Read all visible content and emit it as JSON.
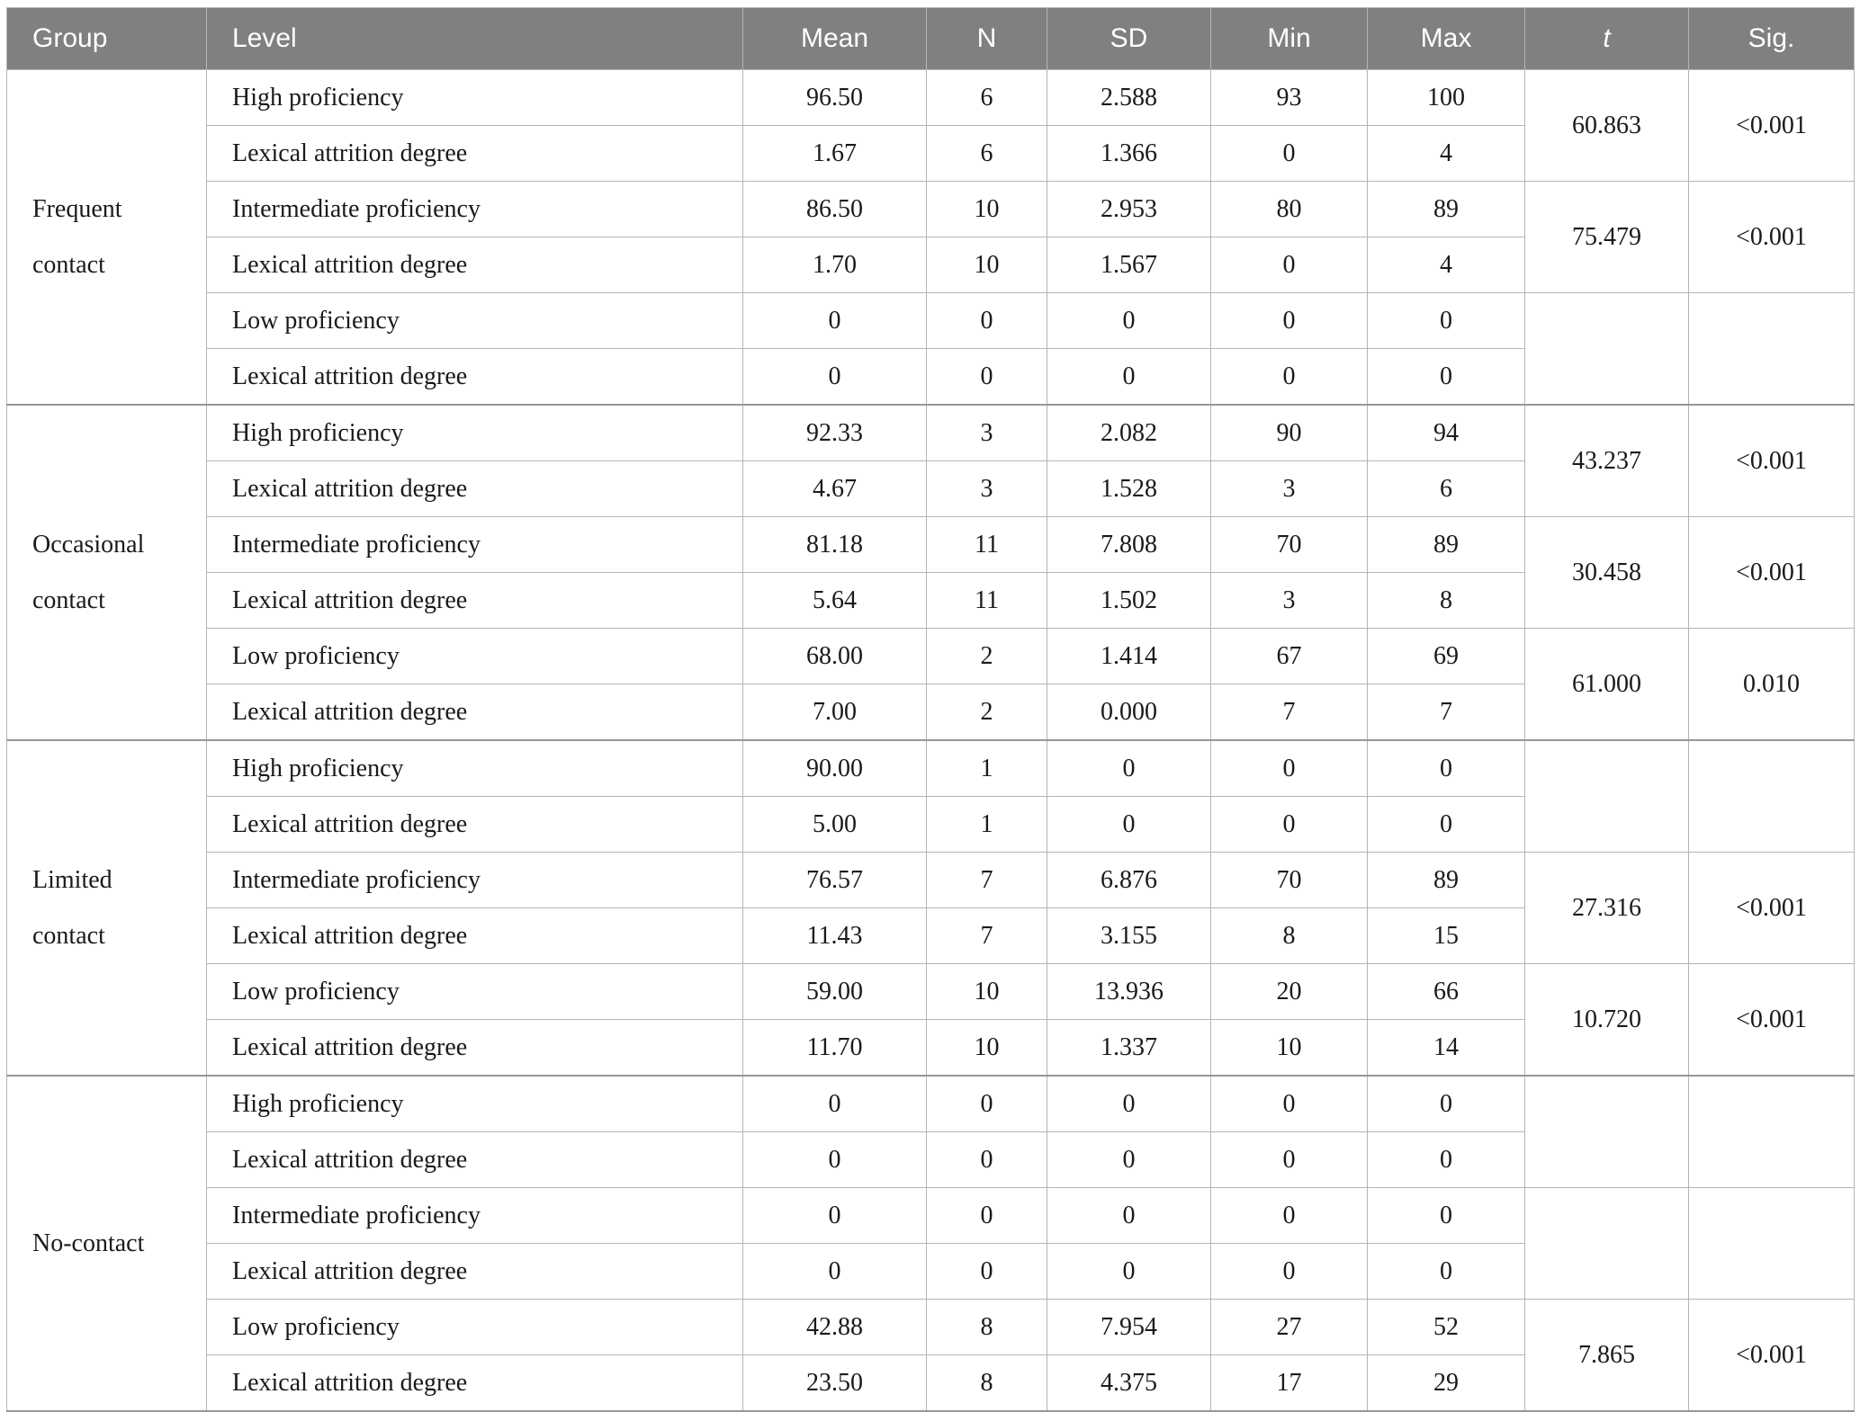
{
  "table": {
    "columns": {
      "group": "Group",
      "level": "Level",
      "mean": "Mean",
      "n": "N",
      "sd": "SD",
      "min": "Min",
      "max": "Max",
      "t": "t",
      "sig": "Sig."
    },
    "groups": [
      {
        "label": "Frequent\ncontact",
        "rows": [
          {
            "level": "High proficiency",
            "mean": "96.50",
            "n": "6",
            "sd": "2.588",
            "min": "93",
            "max": "100"
          },
          {
            "level": "Lexical attrition degree",
            "mean": "1.67",
            "n": "6",
            "sd": "1.366",
            "min": "0",
            "max": "4"
          },
          {
            "level": "Intermediate proficiency",
            "mean": "86.50",
            "n": "10",
            "sd": "2.953",
            "min": "80",
            "max": "89"
          },
          {
            "level": "Lexical attrition degree",
            "mean": "1.70",
            "n": "10",
            "sd": "1.567",
            "min": "0",
            "max": "4"
          },
          {
            "level": "Low proficiency",
            "mean": "0",
            "n": "0",
            "sd": "0",
            "min": "0",
            "max": "0"
          },
          {
            "level": "Lexical attrition degree",
            "mean": "0",
            "n": "0",
            "sd": "0",
            "min": "0",
            "max": "0"
          }
        ],
        "stats": [
          {
            "t": "60.863",
            "sig": "<0.001"
          },
          {
            "t": "75.479",
            "sig": "<0.001"
          },
          {
            "t": "",
            "sig": ""
          }
        ]
      },
      {
        "label": "Occasional\ncontact",
        "rows": [
          {
            "level": "High proficiency",
            "mean": "92.33",
            "n": "3",
            "sd": "2.082",
            "min": "90",
            "max": "94"
          },
          {
            "level": "Lexical attrition degree",
            "mean": "4.67",
            "n": "3",
            "sd": "1.528",
            "min": "3",
            "max": "6"
          },
          {
            "level": "Intermediate proficiency",
            "mean": "81.18",
            "n": "11",
            "sd": "7.808",
            "min": "70",
            "max": "89"
          },
          {
            "level": "Lexical attrition degree",
            "mean": "5.64",
            "n": "11",
            "sd": "1.502",
            "min": "3",
            "max": "8"
          },
          {
            "level": "Low proficiency",
            "mean": "68.00",
            "n": "2",
            "sd": "1.414",
            "min": "67",
            "max": "69"
          },
          {
            "level": "Lexical attrition degree",
            "mean": "7.00",
            "n": "2",
            "sd": "0.000",
            "min": "7",
            "max": "7"
          }
        ],
        "stats": [
          {
            "t": "43.237",
            "sig": "<0.001"
          },
          {
            "t": "30.458",
            "sig": "<0.001"
          },
          {
            "t": "61.000",
            "sig": "0.010"
          }
        ]
      },
      {
        "label": "Limited\ncontact",
        "rows": [
          {
            "level": "High proficiency",
            "mean": "90.00",
            "n": "1",
            "sd": "0",
            "min": "0",
            "max": "0"
          },
          {
            "level": "Lexical attrition degree",
            "mean": "5.00",
            "n": "1",
            "sd": "0",
            "min": "0",
            "max": "0"
          },
          {
            "level": "Intermediate proficiency",
            "mean": "76.57",
            "n": "7",
            "sd": "6.876",
            "min": "70",
            "max": "89"
          },
          {
            "level": "Lexical attrition degree",
            "mean": "11.43",
            "n": "7",
            "sd": "3.155",
            "min": "8",
            "max": "15"
          },
          {
            "level": "Low proficiency",
            "mean": "59.00",
            "n": "10",
            "sd": "13.936",
            "min": "20",
            "max": "66"
          },
          {
            "level": "Lexical attrition degree",
            "mean": "11.70",
            "n": "10",
            "sd": "1.337",
            "min": "10",
            "max": "14"
          }
        ],
        "stats": [
          {
            "t": "",
            "sig": ""
          },
          {
            "t": "27.316",
            "sig": "<0.001"
          },
          {
            "t": "10.720",
            "sig": "<0.001"
          }
        ]
      },
      {
        "label": "No-contact",
        "rows": [
          {
            "level": "High proficiency",
            "mean": "0",
            "n": "0",
            "sd": "0",
            "min": "0",
            "max": "0"
          },
          {
            "level": "Lexical attrition degree",
            "mean": "0",
            "n": "0",
            "sd": "0",
            "min": "0",
            "max": "0"
          },
          {
            "level": "Intermediate proficiency",
            "mean": "0",
            "n": "0",
            "sd": "0",
            "min": "0",
            "max": "0"
          },
          {
            "level": "Lexical attrition degree",
            "mean": "0",
            "n": "0",
            "sd": "0",
            "min": "0",
            "max": "0"
          },
          {
            "level": "Low proficiency",
            "mean": "42.88",
            "n": "8",
            "sd": "7.954",
            "min": "27",
            "max": "52"
          },
          {
            "level": "Lexical attrition degree",
            "mean": "23.50",
            "n": "8",
            "sd": "4.375",
            "min": "17",
            "max": "29"
          }
        ],
        "stats": [
          {
            "t": "",
            "sig": ""
          },
          {
            "t": "",
            "sig": ""
          },
          {
            "t": "7.865",
            "sig": "<0.001"
          }
        ]
      }
    ]
  },
  "colors": {
    "header_bg": "#7f8080",
    "header_text": "#ffffff",
    "cell_border": "#b5b5b5",
    "section_border": "#979797",
    "body_text": "#1a1a1a"
  }
}
